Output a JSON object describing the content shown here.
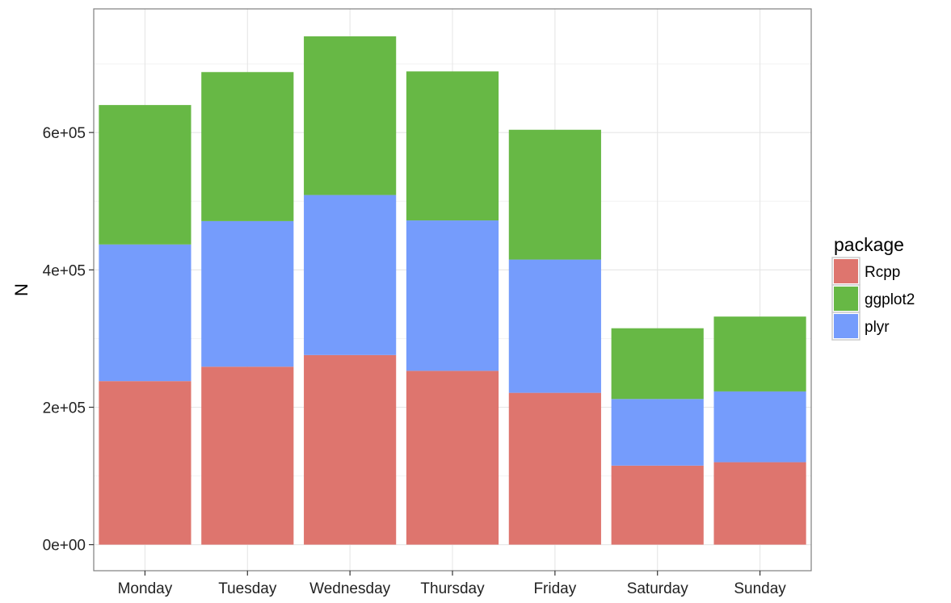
{
  "chart_data": {
    "type": "bar",
    "stacked": true,
    "title": "",
    "xlabel": "",
    "ylabel": "N",
    "categories": [
      "Monday",
      "Tuesday",
      "Wednesday",
      "Thursday",
      "Friday",
      "Saturday",
      "Sunday"
    ],
    "series": [
      {
        "name": "Rcpp",
        "color": "#DE756E",
        "values": [
          238000,
          259000,
          276000,
          253000,
          221000,
          115000,
          120000
        ]
      },
      {
        "name": "plyr",
        "color": "#759CFC",
        "values": [
          199000,
          212000,
          233000,
          219000,
          194000,
          97000,
          103000
        ]
      },
      {
        "name": "ggplot2",
        "color": "#67B845",
        "values": [
          203000,
          217000,
          231000,
          217000,
          189000,
          103000,
          109000
        ]
      }
    ],
    "ylim": [
      -38000,
      780000
    ],
    "yticks": [
      0,
      200000,
      400000,
      600000
    ],
    "ytick_labels": [
      "0e+00",
      "2e+05",
      "4e+05",
      "6e+05"
    ],
    "grid": true,
    "legend": {
      "title": "package",
      "position": "right",
      "entries": [
        {
          "name": "Rcpp",
          "color": "#DE756E"
        },
        {
          "name": "ggplot2",
          "color": "#67B845"
        },
        {
          "name": "plyr",
          "color": "#759CFC"
        }
      ]
    }
  }
}
